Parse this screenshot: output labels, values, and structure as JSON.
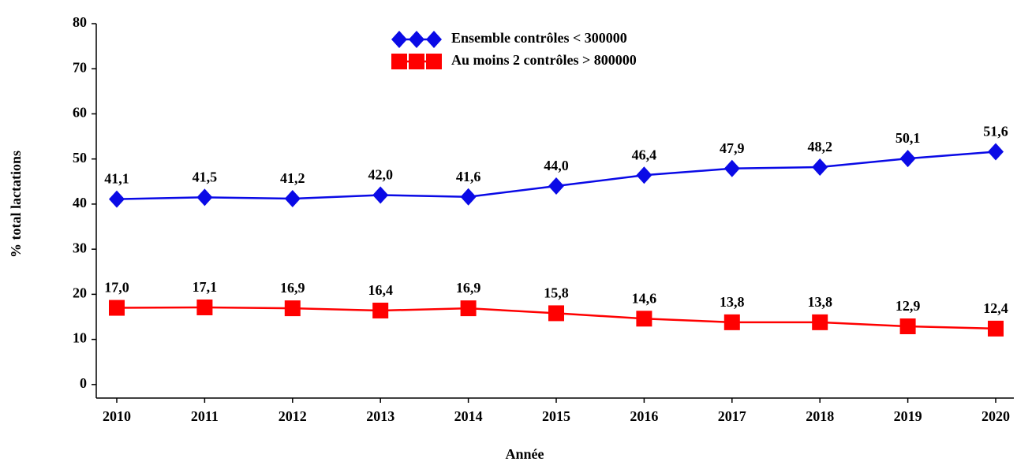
{
  "chart_data": {
    "type": "line",
    "xlabel": "Année",
    "ylabel": "% total lactations",
    "categories": [
      "2010",
      "2011",
      "2012",
      "2013",
      "2014",
      "2015",
      "2016",
      "2017",
      "2018",
      "2019",
      "2020"
    ],
    "series": [
      {
        "name": "Ensemble contrôles < 300000",
        "color": "#0a0ae6",
        "marker": "diamond",
        "values": [
          41.1,
          41.5,
          41.2,
          42.0,
          41.6,
          44.0,
          46.4,
          47.9,
          48.2,
          50.1,
          51.6
        ],
        "value_labels": [
          "41,1",
          "41,5",
          "41,2",
          "42,0",
          "41,6",
          "44,0",
          "46,4",
          "47,9",
          "48,2",
          "50,1",
          "51,6"
        ]
      },
      {
        "name": "Au moins 2 contrôles > 800000",
        "color": "#ff0000",
        "marker": "square",
        "values": [
          17.0,
          17.1,
          16.9,
          16.4,
          16.9,
          15.8,
          14.6,
          13.8,
          13.8,
          12.9,
          12.4
        ],
        "value_labels": [
          "17,0",
          "17,1",
          "16,9",
          "16,4",
          "16,9",
          "15,8",
          "14,6",
          "13,8",
          "13,8",
          "12,9",
          "12,4"
        ]
      }
    ],
    "ylim": [
      -3,
      80
    ],
    "yticks": [
      0,
      10,
      20,
      30,
      40,
      50,
      60,
      70,
      80
    ],
    "grid": false,
    "legend": "top"
  }
}
